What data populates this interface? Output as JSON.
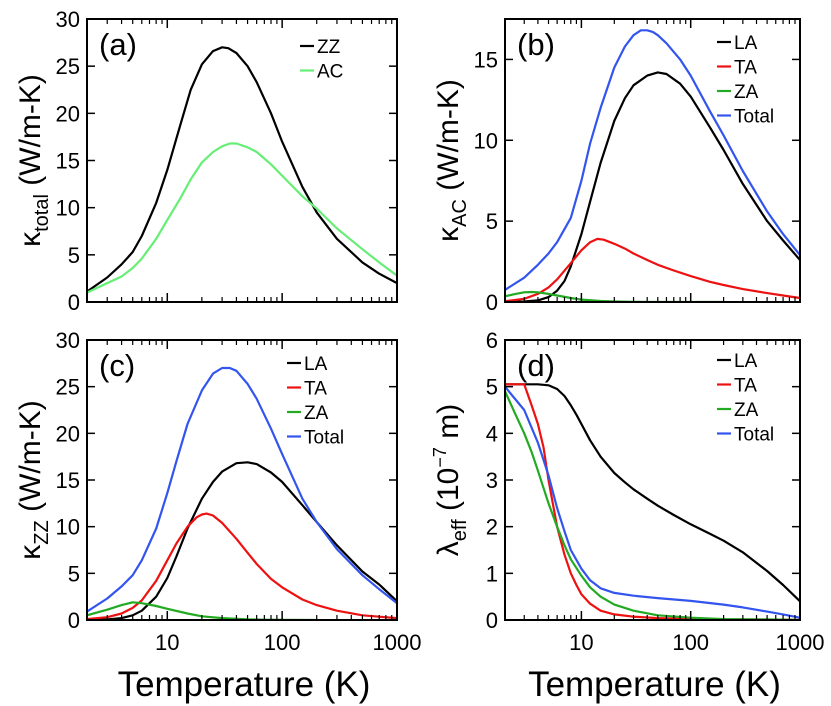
{
  "chart_data": [
    {
      "type": "line",
      "panel_label": "(a)",
      "ylabel_main": "κ",
      "ylabel_sub": "total",
      "ylabel_unit": "(W/m-K)",
      "xscale": "log",
      "xlim": [
        2,
        1000
      ],
      "ylim": [
        0,
        30
      ],
      "yticks": [
        0,
        5,
        10,
        15,
        20,
        25,
        30
      ],
      "ytick_labels": [
        "0",
        "5",
        "10",
        "15",
        "20",
        "25",
        "30"
      ],
      "legend_position": "top-right",
      "series": [
        {
          "name": "ZZ",
          "color": "#000000",
          "x": [
            2,
            3,
            4,
            5,
            6,
            8,
            10,
            13,
            16,
            20,
            25,
            30,
            34,
            40,
            50,
            60,
            80,
            100,
            150,
            200,
            300,
            500,
            700,
            1000
          ],
          "y": [
            1.1,
            2.6,
            4.0,
            5.3,
            7.0,
            10.5,
            14.0,
            18.8,
            22.5,
            25.2,
            26.6,
            27.0,
            26.9,
            26.4,
            25.0,
            23.3,
            20.0,
            17.0,
            12.2,
            9.5,
            6.7,
            4.2,
            3.0,
            2.0
          ]
        },
        {
          "name": "AC",
          "color": "#66ee77",
          "x": [
            2,
            3,
            4,
            5,
            6,
            8,
            10,
            13,
            16,
            20,
            25,
            30,
            35,
            40,
            50,
            60,
            80,
            100,
            150,
            200,
            300,
            500,
            700,
            1000
          ],
          "y": [
            1.0,
            2.0,
            2.7,
            3.6,
            4.6,
            6.7,
            8.7,
            11.0,
            13.0,
            14.8,
            15.9,
            16.5,
            16.8,
            16.8,
            16.4,
            15.9,
            14.6,
            13.4,
            11.2,
            9.9,
            7.8,
            5.6,
            4.2,
            2.8
          ]
        }
      ]
    },
    {
      "type": "line",
      "panel_label": "(b)",
      "ylabel_main": "κ",
      "ylabel_sub": "AC",
      "ylabel_unit": "(W/m-K)",
      "xscale": "log",
      "xlim": [
        2,
        1000
      ],
      "ylim": [
        0,
        17.5
      ],
      "yticks": [
        0,
        5,
        10,
        15
      ],
      "ytick_labels": [
        "0",
        "5",
        "10",
        "15"
      ],
      "legend_position": "top-right",
      "series": [
        {
          "name": "LA",
          "color": "#000000",
          "x": [
            2,
            3,
            4,
            5,
            6,
            7,
            8,
            10,
            12,
            15,
            20,
            25,
            30,
            40,
            50,
            60,
            80,
            100,
            150,
            200,
            300,
            500,
            700,
            1000
          ],
          "y": [
            0.0,
            0.03,
            0.1,
            0.3,
            0.7,
            1.3,
            2.2,
            4.2,
            6.2,
            8.6,
            11.2,
            12.6,
            13.4,
            14.0,
            14.2,
            14.1,
            13.5,
            12.7,
            10.8,
            9.4,
            7.3,
            5.0,
            3.8,
            2.6
          ]
        },
        {
          "name": "TA",
          "color": "#ee1111",
          "x": [
            2,
            3,
            4,
            5,
            6,
            8,
            10,
            12,
            14,
            16,
            20,
            25,
            30,
            40,
            50,
            70,
            100,
            150,
            200,
            300,
            500,
            700,
            1000
          ],
          "y": [
            0.05,
            0.2,
            0.5,
            0.9,
            1.4,
            2.4,
            3.2,
            3.7,
            3.9,
            3.85,
            3.6,
            3.3,
            3.0,
            2.6,
            2.3,
            1.95,
            1.6,
            1.25,
            1.05,
            0.8,
            0.55,
            0.4,
            0.25
          ]
        },
        {
          "name": "ZA",
          "color": "#22aa22",
          "x": [
            2,
            2.5,
            3,
            3.5,
            4,
            5,
            6,
            8,
            10,
            15,
            20,
            30,
            50,
            100,
            200
          ],
          "y": [
            0.35,
            0.5,
            0.6,
            0.62,
            0.6,
            0.5,
            0.4,
            0.25,
            0.15,
            0.06,
            0.03,
            0.01,
            0.0,
            0.0,
            0.0
          ]
        },
        {
          "name": "Total",
          "color": "#3355ee",
          "x": [
            2,
            3,
            4,
            5,
            6,
            8,
            10,
            12,
            15,
            20,
            25,
            30,
            35,
            40,
            45,
            50,
            60,
            80,
            100,
            150,
            200,
            300,
            500,
            700,
            1000
          ],
          "y": [
            0.75,
            1.5,
            2.3,
            3.0,
            3.7,
            5.2,
            7.5,
            9.8,
            12.0,
            14.5,
            15.8,
            16.5,
            16.8,
            16.8,
            16.7,
            16.5,
            16.0,
            15.0,
            14.0,
            11.8,
            10.3,
            8.1,
            5.6,
            4.2,
            2.9
          ]
        }
      ]
    },
    {
      "type": "line",
      "panel_label": "(c)",
      "ylabel_main": "κ",
      "ylabel_sub": "ZZ",
      "ylabel_unit": "(W/m-K)",
      "xscale": "log",
      "xlim": [
        2,
        1000
      ],
      "ylim": [
        0,
        30
      ],
      "yticks": [
        0,
        5,
        10,
        15,
        20,
        25,
        30
      ],
      "ytick_labels": [
        "0",
        "5",
        "10",
        "15",
        "20",
        "25",
        "30"
      ],
      "xticks": [
        10,
        100,
        1000
      ],
      "xtick_labels": [
        "10",
        "100",
        "1000"
      ],
      "xlabel": "Temperature (K)",
      "legend_position": "top-right",
      "series": [
        {
          "name": "LA",
          "color": "#000000",
          "x": [
            2,
            3,
            4,
            5,
            6,
            8,
            10,
            12,
            15,
            20,
            25,
            30,
            40,
            50,
            60,
            80,
            100,
            150,
            200,
            300,
            500,
            700,
            1000
          ],
          "y": [
            0.0,
            0.05,
            0.2,
            0.5,
            1.0,
            2.5,
            4.5,
            6.8,
            9.8,
            13.0,
            14.8,
            15.9,
            16.8,
            16.9,
            16.7,
            15.8,
            14.8,
            12.3,
            10.5,
            8.0,
            5.2,
            3.8,
            2.0
          ]
        },
        {
          "name": "TA",
          "color": "#ee1111",
          "x": [
            2,
            3,
            4,
            5,
            6,
            8,
            10,
            12,
            15,
            18,
            20,
            22,
            25,
            30,
            40,
            50,
            60,
            80,
            100,
            150,
            200,
            300,
            500,
            700,
            1000
          ],
          "y": [
            0.1,
            0.3,
            0.7,
            1.3,
            2.1,
            4.2,
            6.4,
            8.2,
            10.0,
            11.0,
            11.3,
            11.4,
            11.2,
            10.4,
            8.7,
            7.2,
            6.0,
            4.4,
            3.5,
            2.2,
            1.6,
            1.0,
            0.5,
            0.35,
            0.2
          ]
        },
        {
          "name": "ZA",
          "color": "#22aa22",
          "x": [
            2,
            3,
            4,
            5,
            6,
            8,
            10,
            15,
            20,
            30,
            50,
            70,
            100,
            200
          ],
          "y": [
            0.5,
            1.1,
            1.6,
            1.9,
            1.8,
            1.5,
            1.2,
            0.7,
            0.4,
            0.2,
            0.07,
            0.03,
            0.01,
            0.0
          ]
        },
        {
          "name": "Total",
          "color": "#3355ee",
          "x": [
            2,
            3,
            4,
            5,
            6,
            8,
            10,
            12,
            15,
            20,
            25,
            30,
            35,
            40,
            50,
            60,
            80,
            100,
            150,
            200,
            300,
            500,
            700,
            1000
          ],
          "y": [
            0.9,
            2.3,
            3.6,
            4.8,
            6.4,
            9.8,
            13.6,
            17.0,
            21.0,
            24.6,
            26.4,
            27.0,
            27.0,
            26.7,
            25.3,
            23.7,
            20.5,
            17.8,
            13.0,
            10.5,
            7.6,
            4.8,
            3.3,
            1.8
          ]
        }
      ]
    },
    {
      "type": "line",
      "panel_label": "(d)",
      "ylabel_main": "λ",
      "ylabel_sub": "eff",
      "ylabel_unit_prefix": "(10",
      "ylabel_unit_exp": "−7",
      "ylabel_unit_suffix": " m)",
      "xscale": "log",
      "xlim": [
        2,
        1000
      ],
      "ylim": [
        0,
        6
      ],
      "yticks": [
        0,
        1,
        2,
        3,
        4,
        5,
        6
      ],
      "ytick_labels": [
        "0",
        "1",
        "2",
        "3",
        "4",
        "5",
        "6"
      ],
      "xticks": [
        10,
        100,
        1000
      ],
      "xtick_labels": [
        "10",
        "100",
        "1000"
      ],
      "xlabel": "Temperature (K)",
      "legend_position": "top-right",
      "series": [
        {
          "name": "LA",
          "color": "#000000",
          "x": [
            2,
            3,
            4,
            5,
            6,
            7,
            8,
            9,
            10,
            12,
            15,
            20,
            25,
            30,
            40,
            50,
            70,
            100,
            150,
            200,
            300,
            500,
            700,
            1000
          ],
          "y": [
            5.05,
            5.05,
            5.05,
            5.03,
            4.95,
            4.8,
            4.6,
            4.4,
            4.2,
            3.85,
            3.5,
            3.15,
            2.95,
            2.8,
            2.6,
            2.45,
            2.25,
            2.05,
            1.85,
            1.7,
            1.45,
            1.05,
            0.75,
            0.4
          ]
        },
        {
          "name": "TA",
          "color": "#ee1111",
          "x": [
            2,
            3,
            3.5,
            4,
            4.5,
            5,
            6,
            7,
            8,
            9,
            10,
            12,
            15,
            20,
            30,
            50,
            100,
            200,
            500,
            1000
          ],
          "y": [
            5.05,
            5.05,
            4.6,
            4.2,
            3.7,
            3.0,
            2.0,
            1.4,
            1.0,
            0.75,
            0.55,
            0.35,
            0.2,
            0.12,
            0.07,
            0.04,
            0.02,
            0.01,
            0.01,
            0.0
          ]
        },
        {
          "name": "ZA",
          "color": "#22aa22",
          "x": [
            2,
            2.5,
            3,
            3.5,
            4,
            5,
            6,
            7,
            8,
            10,
            12,
            15,
            20,
            30,
            50,
            100,
            200,
            500,
            1000
          ],
          "y": [
            4.9,
            4.4,
            4.0,
            3.6,
            3.2,
            2.5,
            2.0,
            1.6,
            1.3,
            0.95,
            0.7,
            0.5,
            0.33,
            0.2,
            0.1,
            0.05,
            0.02,
            0.01,
            0.0
          ]
        },
        {
          "name": "Total",
          "color": "#3355ee",
          "x": [
            2,
            3,
            4,
            5,
            6,
            7,
            8,
            10,
            12,
            15,
            20,
            30,
            50,
            100,
            200,
            300,
            500,
            700,
            1000
          ],
          "y": [
            5.0,
            4.5,
            3.8,
            3.1,
            2.4,
            1.9,
            1.5,
            1.1,
            0.85,
            0.68,
            0.58,
            0.52,
            0.47,
            0.41,
            0.33,
            0.27,
            0.18,
            0.12,
            0.05
          ]
        }
      ]
    }
  ]
}
